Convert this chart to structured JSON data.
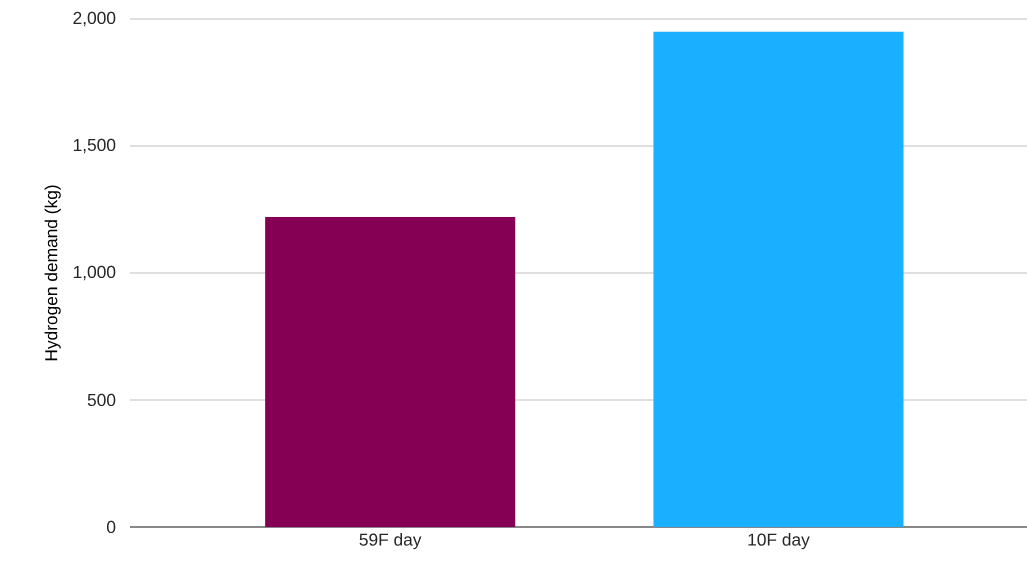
{
  "chart_data": {
    "type": "bar",
    "ylabel": "Hydrogen demand (kg)",
    "categories": [
      "59F day",
      "10F day"
    ],
    "values": [
      1220,
      1950
    ],
    "colors": [
      "#850054",
      "#1ab0ff"
    ],
    "ylim": [
      0,
      2000
    ],
    "yticks": [
      0,
      500,
      {
        "value": 1000,
        "label": "1,000"
      },
      {
        "value": 1500,
        "label": "1,500"
      },
      {
        "value": 2000,
        "label": "2,000"
      }
    ],
    "grid": "y"
  }
}
